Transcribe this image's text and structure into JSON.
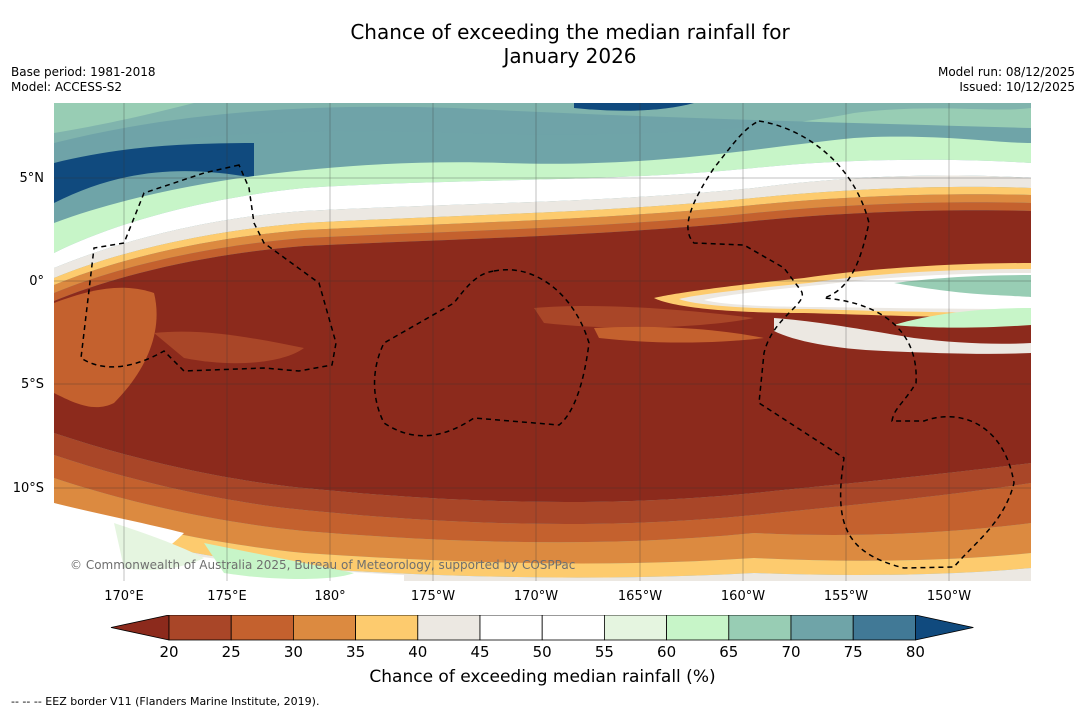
{
  "title": {
    "line1": "Chance of exceeding the median rainfall for",
    "line2": "January 2026"
  },
  "meta": {
    "base_period": "Base period: 1981-2018",
    "model": "Model: ACCESS-S2",
    "model_run": "Model run: 08/12/2025",
    "issued": "Issued: 10/12/2025"
  },
  "map": {
    "latitude_labels": [
      "5°N",
      "0°",
      "5°S",
      "10°S"
    ],
    "longitude_labels": [
      "170°E",
      "175°E",
      "180°",
      "175°W",
      "170°W",
      "165°W",
      "160°W",
      "155°W",
      "150°W"
    ],
    "lat_range": [
      -14.5,
      8.5
    ],
    "lon_range": [
      166.6,
      214
    ],
    "copyright": "© Commonwealth of Australia 2025, Bureau of Meteorology, supported by COSPPac"
  },
  "colorbar": {
    "ticks": [
      "20",
      "25",
      "30",
      "35",
      "40",
      "45",
      "50",
      "55",
      "60",
      "65",
      "70",
      "75",
      "80"
    ],
    "colors": [
      "#8c2a1c",
      "#a94628",
      "#c4612e",
      "#dc8a40",
      "#fdcb6e",
      "#ece8e2",
      "#ffffff",
      "#ffffff",
      "#e5f5e0",
      "#c7f5c8",
      "#98cdb4",
      "#6fa4a8",
      "#417996",
      "#104a7e"
    ],
    "title": "Chance of exceeding median rainfall (%)"
  },
  "footnote": "--  --  -- EEZ border V11 (Flanders Marine Institute, 2019)."
}
